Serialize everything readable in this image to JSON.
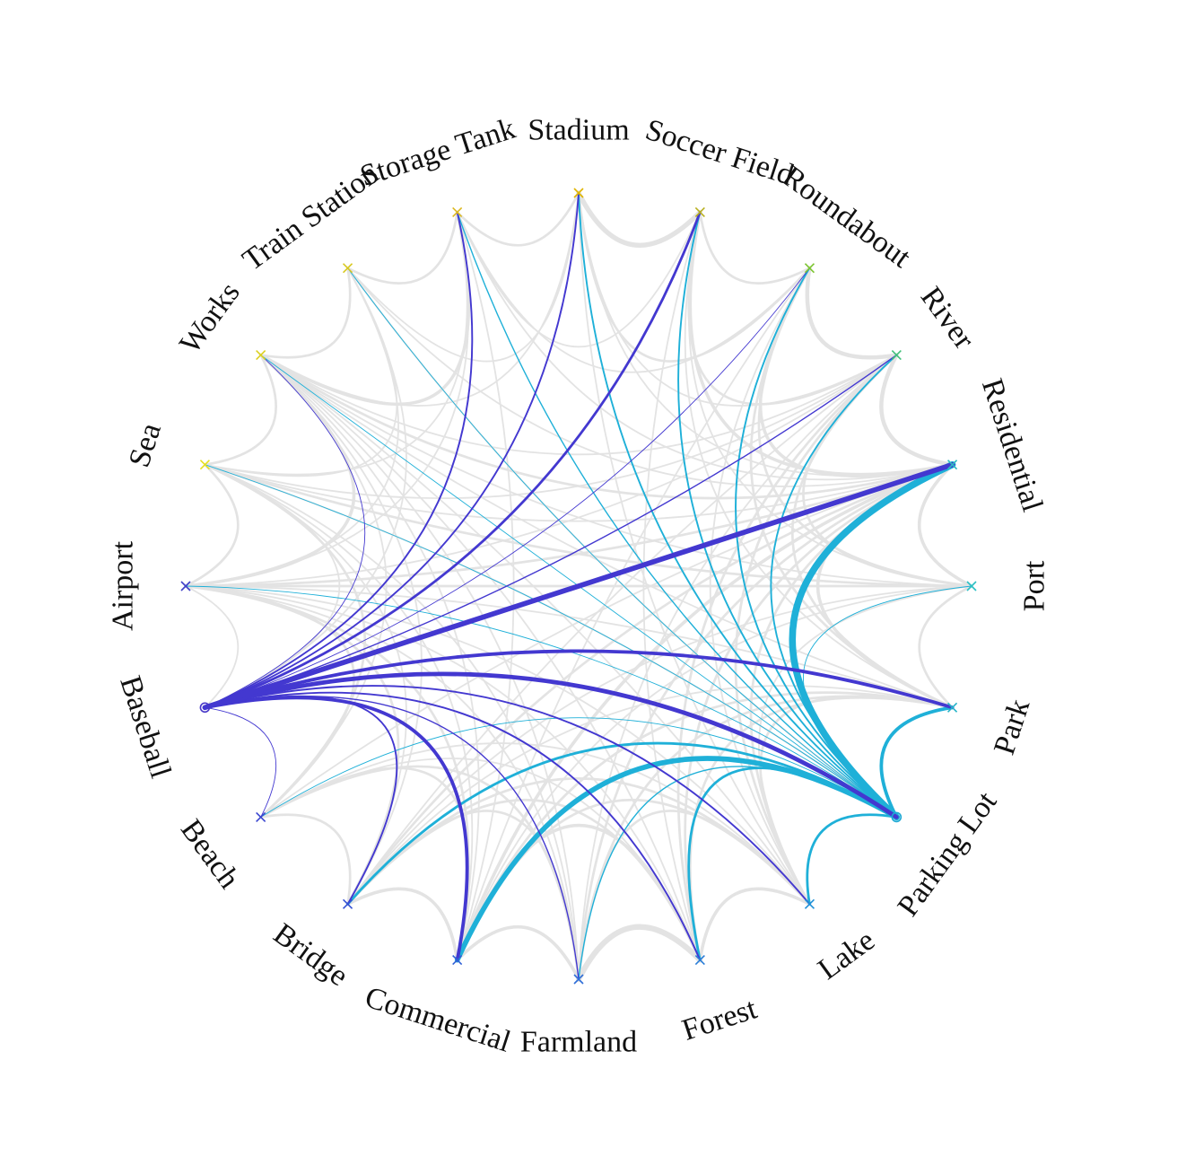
{
  "diagram": {
    "type": "chord",
    "nodes": [
      {
        "id": "stadium",
        "label": "Stadium",
        "marker": "x",
        "color": "#e0b400"
      },
      {
        "id": "soccer",
        "label": "Soccer Field",
        "marker": "x",
        "color": "#b9b020"
      },
      {
        "id": "roundabout",
        "label": "Roundabout",
        "marker": "x",
        "color": "#7cc430"
      },
      {
        "id": "river",
        "label": "River",
        "marker": "x",
        "color": "#42c07a"
      },
      {
        "id": "residential",
        "label": "Residential",
        "marker": "x",
        "color": "#2cbcc0"
      },
      {
        "id": "port",
        "label": "Port",
        "marker": "x",
        "color": "#2cc0c4"
      },
      {
        "id": "park",
        "label": "Park",
        "marker": "x",
        "color": "#26b4c8"
      },
      {
        "id": "parking",
        "label": "Parking Lot",
        "marker": "circle",
        "color": "#1ba8d4"
      },
      {
        "id": "lake",
        "label": "Lake",
        "marker": "x",
        "color": "#2090d8"
      },
      {
        "id": "forest",
        "label": "Forest",
        "marker": "x",
        "color": "#2a7ed8"
      },
      {
        "id": "farmland",
        "label": "Farmland",
        "marker": "x",
        "color": "#2e6ed8"
      },
      {
        "id": "commercial",
        "label": "Commercial",
        "marker": "x",
        "color": "#3060d6"
      },
      {
        "id": "bridge",
        "label": "Bridge",
        "marker": "x",
        "color": "#3552d4"
      },
      {
        "id": "beach",
        "label": "Beach",
        "marker": "x",
        "color": "#3a46d0"
      },
      {
        "id": "baseball",
        "label": "Baseball",
        "marker": "circle",
        "color": "#4838c8"
      },
      {
        "id": "airport",
        "label": "Airport",
        "marker": "x",
        "color": "#4040c8"
      },
      {
        "id": "sea",
        "label": "Sea",
        "marker": "x",
        "color": "#e6e020"
      },
      {
        "id": "works",
        "label": "Works",
        "marker": "x",
        "color": "#dcd020"
      },
      {
        "id": "train",
        "label": "Train Station",
        "marker": "x",
        "color": "#d8c820"
      },
      {
        "id": "storage",
        "label": "Storage Tank",
        "marker": "x",
        "color": "#dcb820"
      }
    ],
    "highlight_colors": {
      "baseball": "#4338d0",
      "parking": "#1fb0d8"
    },
    "highlighted_edges": [
      {
        "source": "baseball",
        "target": "residential",
        "weight": 6
      },
      {
        "source": "baseball",
        "target": "parking",
        "weight": 5
      },
      {
        "source": "baseball",
        "target": "park",
        "weight": 4
      },
      {
        "source": "baseball",
        "target": "commercial",
        "weight": 4
      },
      {
        "source": "baseball",
        "target": "soccer",
        "weight": 3
      },
      {
        "source": "baseball",
        "target": "stadium",
        "weight": 2
      },
      {
        "source": "baseball",
        "target": "storage",
        "weight": 2
      },
      {
        "source": "baseball",
        "target": "river",
        "weight": 1.5
      },
      {
        "source": "baseball",
        "target": "roundabout",
        "weight": 1
      },
      {
        "source": "baseball",
        "target": "bridge",
        "weight": 2
      },
      {
        "source": "baseball",
        "target": "forest",
        "weight": 2
      },
      {
        "source": "baseball",
        "target": "lake",
        "weight": 2
      },
      {
        "source": "baseball",
        "target": "farmland",
        "weight": 1.5
      },
      {
        "source": "baseball",
        "target": "beach",
        "weight": 1
      },
      {
        "source": "baseball",
        "target": "works",
        "weight": 1
      },
      {
        "source": "parking",
        "target": "residential",
        "weight": 8
      },
      {
        "source": "parking",
        "target": "commercial",
        "weight": 6
      },
      {
        "source": "parking",
        "target": "park",
        "weight": 4
      },
      {
        "source": "parking",
        "target": "bridge",
        "weight": 3
      },
      {
        "source": "parking",
        "target": "lake",
        "weight": 3
      },
      {
        "source": "parking",
        "target": "forest",
        "weight": 3
      },
      {
        "source": "parking",
        "target": "soccer",
        "weight": 2
      },
      {
        "source": "parking",
        "target": "roundabout",
        "weight": 2
      },
      {
        "source": "parking",
        "target": "river",
        "weight": 2
      },
      {
        "source": "parking",
        "target": "stadium",
        "weight": 2
      },
      {
        "source": "parking",
        "target": "farmland",
        "weight": 1.5
      },
      {
        "source": "parking",
        "target": "storage",
        "weight": 1.5
      },
      {
        "source": "parking",
        "target": "port",
        "weight": 1
      },
      {
        "source": "parking",
        "target": "works",
        "weight": 1
      },
      {
        "source": "parking",
        "target": "train",
        "weight": 1
      },
      {
        "source": "parking",
        "target": "sea",
        "weight": 1
      },
      {
        "source": "parking",
        "target": "airport",
        "weight": 1
      },
      {
        "source": "parking",
        "target": "beach",
        "weight": 1
      }
    ],
    "background_edges": [
      [
        "stadium",
        "soccer",
        5
      ],
      [
        "stadium",
        "roundabout",
        2
      ],
      [
        "stadium",
        "storage",
        2
      ],
      [
        "stadium",
        "train",
        1
      ],
      [
        "stadium",
        "river",
        1
      ],
      [
        "stadium",
        "works",
        1
      ],
      [
        "stadium",
        "residential",
        1
      ],
      [
        "stadium",
        "lake",
        1
      ],
      [
        "soccer",
        "roundabout",
        2
      ],
      [
        "soccer",
        "river",
        2
      ],
      [
        "soccer",
        "residential",
        3
      ],
      [
        "soccer",
        "storage",
        1
      ],
      [
        "soccer",
        "port",
        1
      ],
      [
        "soccer",
        "park",
        1
      ],
      [
        "soccer",
        "forest",
        1
      ],
      [
        "roundabout",
        "river",
        4
      ],
      [
        "roundabout",
        "residential",
        3
      ],
      [
        "roundabout",
        "port",
        2
      ],
      [
        "roundabout",
        "park",
        2
      ],
      [
        "roundabout",
        "storage",
        1
      ],
      [
        "roundabout",
        "lake",
        1
      ],
      [
        "roundabout",
        "commercial",
        1
      ],
      [
        "river",
        "residential",
        4
      ],
      [
        "river",
        "port",
        2
      ],
      [
        "river",
        "park",
        2
      ],
      [
        "river",
        "lake",
        2
      ],
      [
        "river",
        "forest",
        2
      ],
      [
        "river",
        "farmland",
        1
      ],
      [
        "river",
        "bridge",
        1
      ],
      [
        "river",
        "works",
        1
      ],
      [
        "river",
        "sea",
        1
      ],
      [
        "river",
        "airport",
        1
      ],
      [
        "residential",
        "port",
        3
      ],
      [
        "residential",
        "park",
        3
      ],
      [
        "residential",
        "lake",
        2
      ],
      [
        "residential",
        "forest",
        2
      ],
      [
        "residential",
        "farmland",
        2
      ],
      [
        "residential",
        "commercial",
        3
      ],
      [
        "residential",
        "bridge",
        2
      ],
      [
        "residential",
        "works",
        2
      ],
      [
        "residential",
        "storage",
        1
      ],
      [
        "residential",
        "sea",
        1
      ],
      [
        "residential",
        "airport",
        2
      ],
      [
        "residential",
        "beach",
        1
      ],
      [
        "residential",
        "train",
        1
      ],
      [
        "port",
        "park",
        2
      ],
      [
        "port",
        "lake",
        1
      ],
      [
        "port",
        "bridge",
        1
      ],
      [
        "port",
        "sea",
        2
      ],
      [
        "port",
        "airport",
        2
      ],
      [
        "port",
        "commercial",
        1
      ],
      [
        "port",
        "works",
        1
      ],
      [
        "park",
        "lake",
        2
      ],
      [
        "park",
        "forest",
        2
      ],
      [
        "park",
        "farmland",
        2
      ],
      [
        "park",
        "commercial",
        2
      ],
      [
        "park",
        "bridge",
        1
      ],
      [
        "park",
        "airport",
        1
      ],
      [
        "park",
        "works",
        1
      ],
      [
        "parking",
        "train",
        1
      ],
      [
        "parking",
        "sea",
        1
      ],
      [
        "lake",
        "forest",
        3
      ],
      [
        "lake",
        "farmland",
        2
      ],
      [
        "lake",
        "commercial",
        2
      ],
      [
        "lake",
        "bridge",
        2
      ],
      [
        "lake",
        "beach",
        1
      ],
      [
        "lake",
        "works",
        1
      ],
      [
        "lake",
        "airport",
        1
      ],
      [
        "forest",
        "farmland",
        6
      ],
      [
        "forest",
        "commercial",
        3
      ],
      [
        "forest",
        "bridge",
        2
      ],
      [
        "forest",
        "beach",
        1
      ],
      [
        "forest",
        "airport",
        1
      ],
      [
        "forest",
        "works",
        1
      ],
      [
        "farmland",
        "commercial",
        3
      ],
      [
        "farmland",
        "bridge",
        2
      ],
      [
        "farmland",
        "beach",
        2
      ],
      [
        "farmland",
        "airport",
        1
      ],
      [
        "farmland",
        "sea",
        1
      ],
      [
        "farmland",
        "works",
        1
      ],
      [
        "commercial",
        "bridge",
        3
      ],
      [
        "commercial",
        "beach",
        2
      ],
      [
        "commercial",
        "airport",
        2
      ],
      [
        "commercial",
        "works",
        1
      ],
      [
        "commercial",
        "sea",
        1
      ],
      [
        "commercial",
        "storage",
        1
      ],
      [
        "bridge",
        "beach",
        2
      ],
      [
        "bridge",
        "airport",
        2
      ],
      [
        "bridge",
        "sea",
        1
      ],
      [
        "bridge",
        "works",
        1
      ],
      [
        "beach",
        "airport",
        2
      ],
      [
        "beach",
        "sea",
        2
      ],
      [
        "beach",
        "works",
        1
      ],
      [
        "airport",
        "sea",
        2
      ],
      [
        "airport",
        "works",
        3
      ],
      [
        "airport",
        "train",
        1
      ],
      [
        "airport",
        "storage",
        1
      ],
      [
        "sea",
        "works",
        2
      ],
      [
        "sea",
        "train",
        1
      ],
      [
        "sea",
        "storage",
        1
      ],
      [
        "works",
        "train",
        2
      ],
      [
        "works",
        "storage",
        3
      ],
      [
        "train",
        "storage",
        2
      ],
      [
        "baseball",
        "sea",
        1
      ],
      [
        "baseball",
        "airport",
        1
      ],
      [
        "baseball",
        "train",
        1
      ]
    ]
  }
}
